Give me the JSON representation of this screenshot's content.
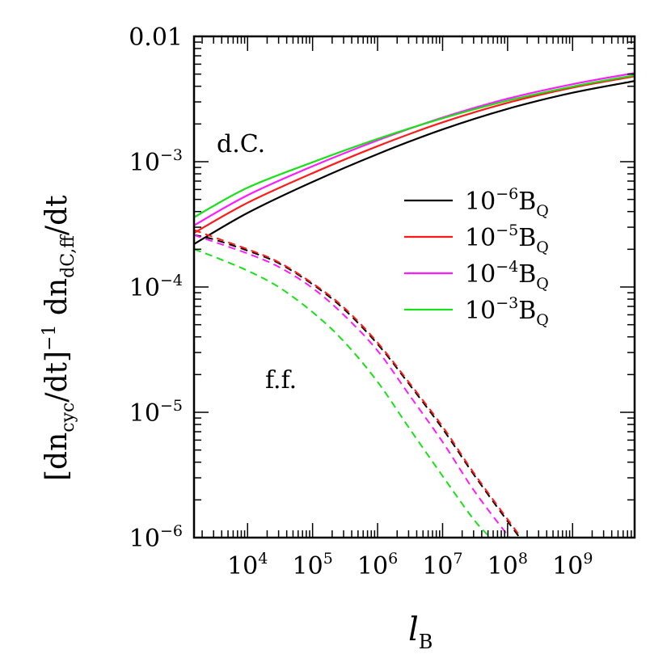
{
  "chart_data": {
    "type": "line",
    "xscale": "log",
    "yscale": "log",
    "xlim": [
      1500,
      9000000000
    ],
    "ylim": [
      1e-06,
      0.01
    ],
    "grid": false,
    "legend_placement": "right-center",
    "x_ticks": [
      {
        "value": 10000,
        "base": "10",
        "exp": "4"
      },
      {
        "value": 100000,
        "base": "10",
        "exp": "5"
      },
      {
        "value": 1000000,
        "base": "10",
        "exp": "6"
      },
      {
        "value": 10000000,
        "base": "10",
        "exp": "7"
      },
      {
        "value": 100000000,
        "base": "10",
        "exp": "8"
      },
      {
        "value": 1000000000,
        "base": "10",
        "exp": "9"
      }
    ],
    "y_ticks": [
      {
        "value": 0.01,
        "text": "0.01"
      },
      {
        "value": 0.001,
        "base": "10",
        "exp": "−3"
      },
      {
        "value": 0.0001,
        "base": "10",
        "exp": "−4"
      },
      {
        "value": 1e-05,
        "base": "10",
        "exp": "−5"
      },
      {
        "value": 1e-06,
        "base": "10",
        "exp": "−6"
      }
    ],
    "xlabel": {
      "main": "l",
      "sub": "B"
    },
    "ylabel": {
      "part1": "[dn",
      "sub1": "cyc",
      "part2": "/dt]",
      "sup": "−1",
      "part3": " dn",
      "sub2": "dC,ff",
      "part4": "/dt"
    },
    "annotations": {
      "dc": "d.C.",
      "ff": "f.f."
    },
    "series": [
      {
        "name": "10⁻⁶B_Q",
        "legend": {
          "base": "10",
          "exp": "−6",
          "tail": "B",
          "sub": "Q"
        },
        "color": "#000000",
        "dC": {
          "x": [
            1500,
            10000,
            100000,
            1000000,
            10000000,
            100000000,
            1000000000,
            9000000000
          ],
          "y": [
            0.00022,
            0.00039,
            0.00069,
            0.00115,
            0.00181,
            0.00264,
            0.00355,
            0.0044
          ]
        },
        "ff": {
          "x": [
            1500,
            3000,
            10000,
            30000,
            100000,
            300000,
            1000000,
            3000000,
            10000000,
            30000000,
            100000000,
            300000000
          ],
          "y": [
            0.00026,
            0.00024,
            0.000195,
            0.000155,
            0.000105,
            6.7e-05,
            3.5e-05,
            1.7e-05,
            7.4e-06,
            3.2e-06,
            1.35e-06,
            6.3e-07
          ]
        }
      },
      {
        "name": "10⁻⁵B_Q",
        "legend": {
          "base": "10",
          "exp": "−5",
          "tail": "B",
          "sub": "Q"
        },
        "color": "#ff1a1a",
        "dC": {
          "x": [
            1500,
            10000,
            100000,
            1000000,
            10000000,
            100000000,
            1000000000,
            9000000000
          ],
          "y": [
            0.00027,
            0.00047,
            0.00081,
            0.00133,
            0.00206,
            0.00295,
            0.0039,
            0.0048
          ]
        },
        "ff": {
          "x": [
            1500,
            3000,
            10000,
            30000,
            100000,
            300000,
            1000000,
            3000000,
            10000000,
            30000000,
            100000000,
            300000000
          ],
          "y": [
            0.000285,
            0.00025,
            0.0002,
            0.000158,
            0.000107,
            6.9e-05,
            3.6e-05,
            1.75e-05,
            7.7e-06,
            3.3e-06,
            1.4e-06,
            6.5e-07
          ]
        }
      },
      {
        "name": "10⁻⁴B_Q",
        "legend": {
          "base": "10",
          "exp": "−4",
          "tail": "B",
          "sub": "Q"
        },
        "color": "#ff1aff",
        "dC": {
          "x": [
            1500,
            10000,
            100000,
            1000000,
            10000000,
            100000000,
            1000000000,
            9000000000
          ],
          "y": [
            0.00031,
            0.00054,
            0.00092,
            0.00148,
            0.00225,
            0.00318,
            0.00415,
            0.0051
          ]
        },
        "ff": {
          "x": [
            1500,
            3000,
            10000,
            30000,
            100000,
            300000,
            1000000,
            3000000,
            10000000,
            30000000,
            100000000,
            200000000
          ],
          "y": [
            0.00026,
            0.00023,
            0.000185,
            0.000145,
            9.8e-05,
            6e-05,
            3.1e-05,
            1.4e-05,
            5.8e-06,
            2.4e-06,
            1.05e-06,
            7e-07
          ]
        }
      },
      {
        "name": "10⁻³B_Q",
        "legend": {
          "base": "10",
          "exp": "−3",
          "tail": "B",
          "sub": "Q"
        },
        "color": "#1ae01a",
        "dC": {
          "x": [
            1500,
            10000,
            100000,
            1000000,
            10000000,
            100000000,
            1000000000,
            9000000000
          ],
          "y": [
            0.00036,
            0.00062,
            0.00099,
            0.00152,
            0.00222,
            0.00307,
            0.00398,
            0.0049
          ]
        },
        "ff": {
          "x": [
            1500,
            3000,
            10000,
            30000,
            100000,
            300000,
            1000000,
            3000000,
            10000000,
            30000000,
            60000000
          ],
          "y": [
            0.0002,
            0.000175,
            0.000135,
            0.0001,
            6.3e-05,
            3.7e-05,
            1.75e-05,
            7.6e-06,
            3.1e-06,
            1.4e-06,
            9.5e-07
          ]
        }
      }
    ]
  }
}
